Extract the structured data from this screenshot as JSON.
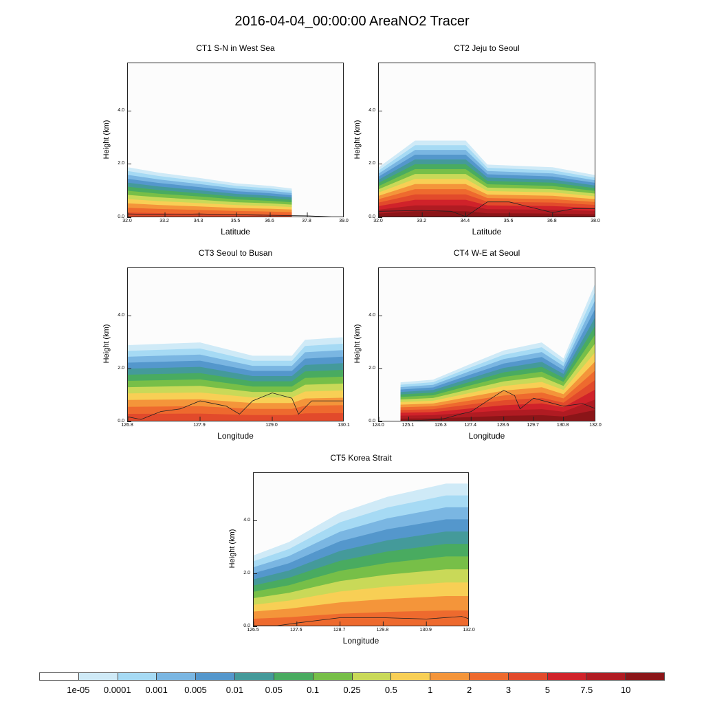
{
  "main_title": "2016-04-04_00:00:00 AreaNO2 Tracer",
  "colorbar": {
    "labels": [
      "1e-05",
      "0.0001",
      "0.001",
      "0.005",
      "0.01",
      "0.05",
      "0.1",
      "0.25",
      "0.5",
      "1",
      "2",
      "3",
      "5",
      "7.5",
      "10"
    ],
    "colors": [
      "#ffffff",
      "#cfeaf7",
      "#a6daf4",
      "#7ab6e2",
      "#5497cc",
      "#449a9a",
      "#49ab60",
      "#77bf48",
      "#c9d958",
      "#f8cf55",
      "#f4953a",
      "#ee6a2e",
      "#e24a2b",
      "#d0222a",
      "#b01b22",
      "#8b1518"
    ]
  },
  "chart_data": [
    {
      "type": "heatmap",
      "title": "CT1 S-N in West Sea",
      "xlabel": "Latitude",
      "ylabel": "Height (km)",
      "xticks": [
        "32.0",
        "33.2",
        "34.3",
        "35.5",
        "36.6",
        "37.8",
        "39.0"
      ],
      "yticks": [
        "0.0",
        "2.0",
        "4.0"
      ],
      "xlim": [
        32.0,
        39.0
      ],
      "ylim": [
        0.0,
        5.8
      ],
      "plume_top_km": [
        [
          32.0,
          1.9
        ],
        [
          33.0,
          1.7
        ],
        [
          34.3,
          1.5
        ],
        [
          35.5,
          1.3
        ],
        [
          36.6,
          1.2
        ],
        [
          37.3,
          1.1
        ],
        [
          37.3,
          0.0
        ]
      ],
      "max_level": "3",
      "terrain_km": [
        [
          32.0,
          0.15
        ],
        [
          33.2,
          0.12
        ],
        [
          34.3,
          0.15
        ],
        [
          35.5,
          0.12
        ],
        [
          36.6,
          0.1
        ],
        [
          37.8,
          0.08
        ],
        [
          39.0,
          0.02
        ]
      ]
    },
    {
      "type": "heatmap",
      "title": "CT2 Jeju to Seoul",
      "xlabel": "Latitude",
      "ylabel": "Height (km)",
      "xticks": [
        "32.0",
        "33.2",
        "34.4",
        "35.6",
        "36.8",
        "38.0"
      ],
      "yticks": [
        "0.0",
        "2.0",
        "4.0"
      ],
      "xlim": [
        32.0,
        38.0
      ],
      "ylim": [
        0.0,
        5.8
      ],
      "plume_top_km": [
        [
          32.0,
          1.9
        ],
        [
          33.0,
          2.9
        ],
        [
          34.4,
          2.9
        ],
        [
          35.0,
          2.0
        ],
        [
          36.8,
          1.9
        ],
        [
          38.0,
          1.6
        ]
      ],
      "max_level": "10",
      "terrain_km": [
        [
          32.0,
          0.25
        ],
        [
          33.2,
          0.28
        ],
        [
          34.0,
          0.25
        ],
        [
          34.4,
          0.05
        ],
        [
          35.0,
          0.6
        ],
        [
          35.6,
          0.6
        ],
        [
          36.2,
          0.4
        ],
        [
          36.8,
          0.2
        ],
        [
          37.4,
          0.35
        ],
        [
          38.0,
          0.35
        ]
      ]
    },
    {
      "type": "heatmap",
      "title": "CT3 Seoul to Busan",
      "xlabel": "Longitude",
      "ylabel": "Height (km)",
      "xticks": [
        "126.8",
        "127.9",
        "129.0",
        "130.1"
      ],
      "yticks": [
        "0.0",
        "2.0",
        "4.0"
      ],
      "xlim": [
        126.8,
        130.1
      ],
      "ylim": [
        0.0,
        5.8
      ],
      "plume_top_km": [
        [
          126.8,
          2.9
        ],
        [
          127.9,
          3.0
        ],
        [
          128.7,
          2.5
        ],
        [
          129.3,
          2.5
        ],
        [
          129.5,
          3.1
        ],
        [
          130.1,
          3.2
        ]
      ],
      "max_level": "3",
      "terrain_km": [
        [
          126.8,
          0.2
        ],
        [
          127.0,
          0.1
        ],
        [
          127.3,
          0.4
        ],
        [
          127.6,
          0.5
        ],
        [
          127.9,
          0.8
        ],
        [
          128.3,
          0.6
        ],
        [
          128.5,
          0.3
        ],
        [
          128.7,
          0.8
        ],
        [
          129.0,
          1.1
        ],
        [
          129.3,
          0.9
        ],
        [
          129.4,
          0.3
        ],
        [
          129.6,
          0.8
        ],
        [
          130.1,
          0.8
        ]
      ]
    },
    {
      "type": "heatmap",
      "title": "CT4 W-E at Seoul",
      "xlabel": "Longitude",
      "ylabel": "Height (km)",
      "xticks": [
        "124.0",
        "125.1",
        "126.3",
        "127.4",
        "128.6",
        "129.7",
        "130.8",
        "132.0"
      ],
      "yticks": [
        "0.0",
        "2.0",
        "4.0"
      ],
      "xlim": [
        124.0,
        132.0
      ],
      "ylim": [
        0.0,
        5.8
      ],
      "plume_top_km": [
        [
          124.8,
          1.5
        ],
        [
          126.0,
          1.6
        ],
        [
          127.4,
          2.2
        ],
        [
          128.6,
          2.7
        ],
        [
          130.0,
          3.0
        ],
        [
          130.8,
          2.4
        ],
        [
          132.0,
          5.3
        ]
      ],
      "max_level": "10",
      "terrain_km": [
        [
          124.0,
          0.0
        ],
        [
          125.1,
          0.05
        ],
        [
          126.3,
          0.1
        ],
        [
          127.0,
          0.3
        ],
        [
          127.4,
          0.4
        ],
        [
          128.0,
          0.8
        ],
        [
          128.6,
          1.2
        ],
        [
          129.0,
          1.0
        ],
        [
          129.2,
          0.5
        ],
        [
          129.7,
          0.9
        ],
        [
          130.8,
          0.6
        ],
        [
          131.5,
          0.7
        ],
        [
          132.0,
          0.5
        ]
      ]
    },
    {
      "type": "heatmap",
      "title": "CT5 Korea Strait",
      "xlabel": "Longitude",
      "ylabel": "Height (km)",
      "xticks": [
        "126.5",
        "127.6",
        "128.7",
        "129.8",
        "130.9",
        "132.0"
      ],
      "yticks": [
        "0.0",
        "2.0",
        "4.0"
      ],
      "xlim": [
        126.5,
        132.0
      ],
      "ylim": [
        0.0,
        5.8
      ],
      "plume_top_km": [
        [
          126.5,
          2.7
        ],
        [
          127.4,
          3.2
        ],
        [
          128.1,
          3.8
        ],
        [
          128.7,
          4.3
        ],
        [
          129.9,
          4.9
        ],
        [
          131.4,
          5.4
        ],
        [
          132.0,
          5.4
        ]
      ],
      "max_level": "2",
      "terrain_km": [
        [
          126.5,
          0.05
        ],
        [
          127.1,
          0.05
        ],
        [
          127.6,
          0.15
        ],
        [
          128.7,
          0.35
        ],
        [
          129.8,
          0.35
        ],
        [
          130.9,
          0.3
        ],
        [
          131.8,
          0.4
        ],
        [
          132.0,
          0.3
        ]
      ]
    }
  ]
}
